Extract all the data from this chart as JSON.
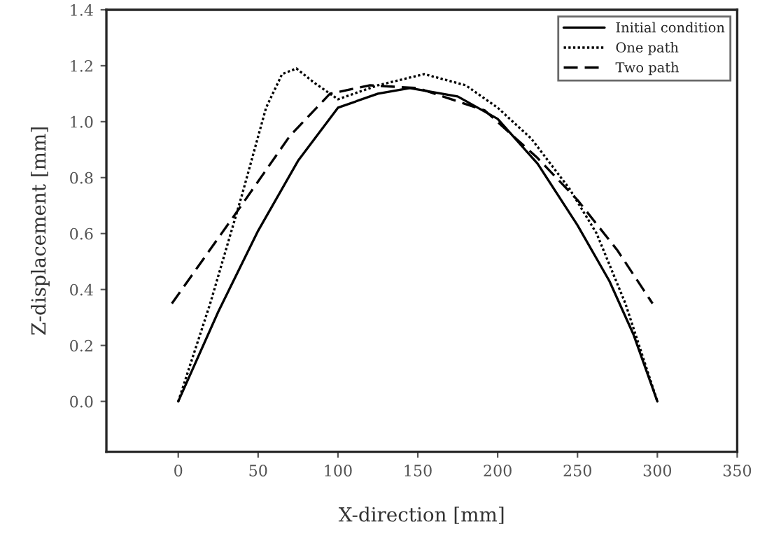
{
  "chart_data": {
    "type": "line",
    "xlabel": "X-direction [mm]",
    "ylabel": "Z-displacement [mm]",
    "xlim": [
      -45,
      350
    ],
    "xticks": [
      0,
      50,
      100,
      150,
      200,
      250,
      300,
      350
    ],
    "ylim": [
      -0.18,
      1.4
    ],
    "yticks": [
      {
        "value": 0,
        "label": "0.0"
      },
      0.2,
      0.4,
      0.6,
      0.8,
      {
        "value": 1,
        "label": "1.0"
      },
      1.2,
      1.4
    ],
    "grid": false,
    "legend": "top right",
    "marker": "none",
    "series": [
      {
        "name": "Initial condition",
        "color": "#000000",
        "line_style": "solid",
        "x": [
          0,
          25,
          50,
          75,
          100,
          125,
          145,
          175,
          200,
          225,
          250,
          270,
          285,
          300
        ],
        "values": [
          0,
          0.32,
          0.61,
          0.86,
          1.05,
          1.1,
          1.12,
          1.09,
          1.01,
          0.85,
          0.63,
          0.43,
          0.24,
          0
        ]
      },
      {
        "name": "One path",
        "color": "#000000",
        "line_style": "dotted",
        "x": [
          0,
          20,
          40,
          55,
          65,
          74,
          85,
          100,
          125,
          154,
          180,
          200,
          221,
          245,
          262,
          280,
          300
        ],
        "values": [
          0,
          0.35,
          0.74,
          1.05,
          1.17,
          1.19,
          1.14,
          1.08,
          1.13,
          1.17,
          1.13,
          1.05,
          0.94,
          0.76,
          0.6,
          0.35,
          0
        ]
      },
      {
        "name": "Two path",
        "color": "#000000",
        "line_style": "dashed",
        "x": [
          -4,
          37,
          70,
          95,
          120,
          150,
          192,
          225,
          250,
          275,
          297
        ],
        "values": [
          0.35,
          0.68,
          0.95,
          1.1,
          1.13,
          1.12,
          1.04,
          0.87,
          0.72,
          0.54,
          0.35
        ]
      }
    ]
  }
}
